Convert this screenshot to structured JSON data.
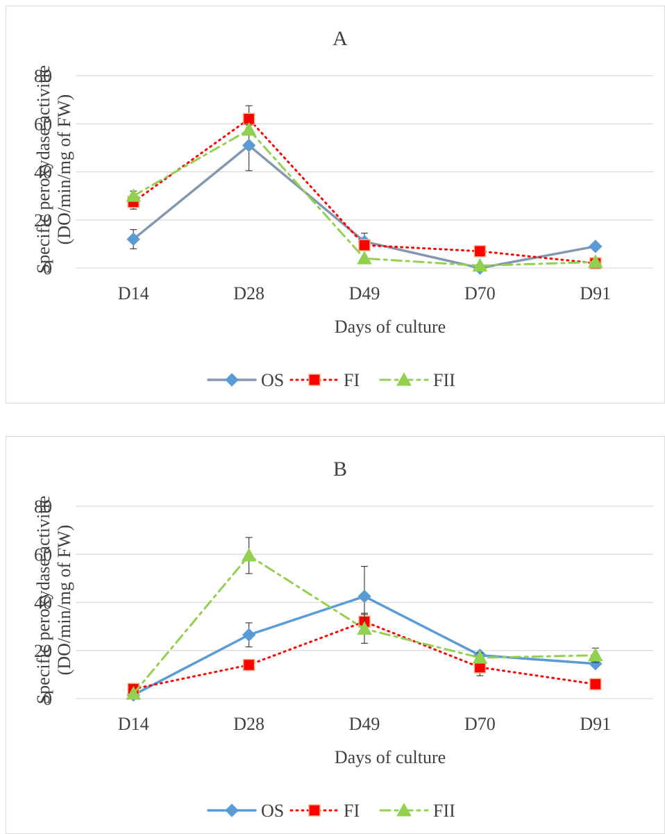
{
  "chart_data": [
    {
      "type": "line",
      "title": "A",
      "xlabel": "Days of culture",
      "ylabel": [
        "Specific peroxydase activitie",
        "(DO/min/mg of FW)"
      ],
      "categories": [
        "D14",
        "D28",
        "D49",
        "D70",
        "D91"
      ],
      "ylim": [
        0,
        80
      ],
      "yticks": [
        0,
        20,
        40,
        60,
        80
      ],
      "grid": true,
      "legend_position": "bottom",
      "series": [
        {
          "name": "OS",
          "values": [
            12,
            51,
            11,
            0,
            9
          ],
          "errors": [
            4,
            10.5,
            3.5,
            0.5,
            0.5
          ],
          "color": "#8497b0",
          "marker_color": "#5b9bd5",
          "marker": "diamond",
          "dash": "solid"
        },
        {
          "name": "FI",
          "values": [
            27.5,
            62,
            9.5,
            7,
            2
          ],
          "errors": [
            3,
            5.5,
            2,
            1,
            0.5
          ],
          "color": "#ff0000",
          "marker_color": "#ff0000",
          "marker": "square",
          "dash": "dotted"
        },
        {
          "name": "FII",
          "values": [
            30,
            57.5,
            4,
            1,
            2.5
          ],
          "errors": [
            2,
            2,
            0.5,
            0.5,
            0.5
          ],
          "color": "#92d050",
          "marker_color": "#92d050",
          "marker": "triangle",
          "dash": "dashdot"
        }
      ]
    },
    {
      "type": "line",
      "title": "B",
      "xlabel": "Days of culture",
      "ylabel": [
        "Specific peroxydase activitie",
        "(DO/min/mg of FW)"
      ],
      "categories": [
        "D14",
        "D28",
        "D49",
        "D70",
        "D91"
      ],
      "ylim": [
        0,
        80
      ],
      "yticks": [
        0,
        20,
        40,
        60,
        80
      ],
      "grid": true,
      "legend_position": "bottom",
      "series": [
        {
          "name": "OS",
          "values": [
            1.5,
            26.5,
            42.5,
            18,
            14.5
          ],
          "errors": [
            0.5,
            5,
            12.5,
            1,
            1
          ],
          "color": "#5b9bd5",
          "marker_color": "#5b9bd5",
          "marker": "diamond",
          "dash": "solid"
        },
        {
          "name": "FI",
          "values": [
            4,
            14,
            32,
            13,
            6
          ],
          "errors": [
            0.5,
            1,
            3.5,
            3.5,
            0.5
          ],
          "color": "#ff0000",
          "marker_color": "#ff0000",
          "marker": "square",
          "dash": "dotted"
        },
        {
          "name": "FII",
          "values": [
            2,
            59.5,
            29,
            17,
            18
          ],
          "errors": [
            0.5,
            7.5,
            6,
            2,
            3
          ],
          "color": "#92d050",
          "marker_color": "#92d050",
          "marker": "triangle",
          "dash": "dashdot"
        }
      ]
    }
  ]
}
